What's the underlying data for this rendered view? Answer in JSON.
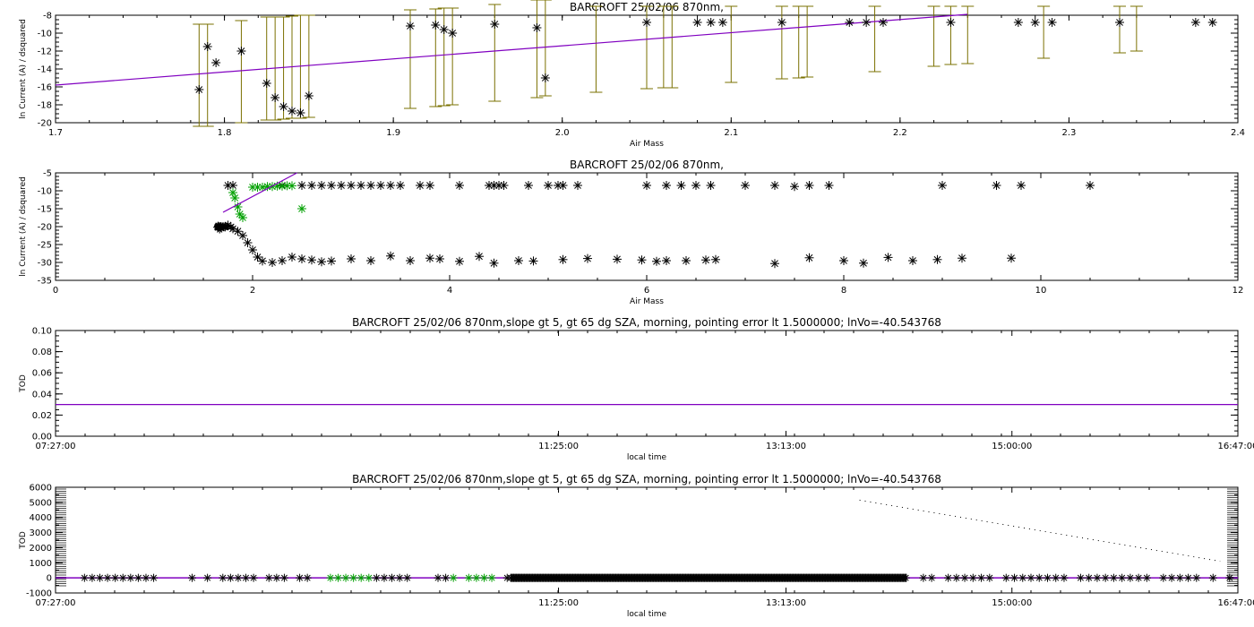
{
  "chart_data": [
    {
      "type": "scatter",
      "title": "BARCROFT 25/02/06 870nm,",
      "xlabel": "Air Mass",
      "ylabel": "ln Current (A) / dsquared",
      "xlim": [
        1.7,
        2.4
      ],
      "ylim": [
        -20,
        -8
      ],
      "xticks": [
        "1.7",
        "1.8",
        "1.9",
        "2.0",
        "2.1",
        "2.2",
        "2.3",
        "2.4"
      ],
      "yticks": [
        "-20",
        "-18",
        "-16",
        "-14",
        "-12",
        "-10",
        "-8"
      ],
      "colors": {
        "points": "#000000",
        "errorbars": "#7a7000",
        "fit": "#8000c0"
      },
      "points": [
        [
          1.785,
          -16.3
        ],
        [
          1.79,
          -11.5
        ],
        [
          1.795,
          -13.3
        ],
        [
          1.81,
          -12.0
        ],
        [
          1.825,
          -15.6
        ],
        [
          1.83,
          -17.2
        ],
        [
          1.835,
          -18.2
        ],
        [
          1.84,
          -18.7
        ],
        [
          1.845,
          -18.9
        ],
        [
          1.85,
          -17.0
        ],
        [
          1.91,
          -9.2
        ],
        [
          1.925,
          -9.1
        ],
        [
          1.93,
          -9.6
        ],
        [
          1.935,
          -10.0
        ],
        [
          1.96,
          -9.0
        ],
        [
          1.985,
          -9.4
        ],
        [
          1.99,
          -15.0
        ],
        [
          2.05,
          -8.8
        ],
        [
          2.08,
          -8.8
        ],
        [
          2.088,
          -8.8
        ],
        [
          2.095,
          -8.8
        ],
        [
          2.13,
          -8.8
        ],
        [
          2.17,
          -8.8
        ],
        [
          2.18,
          -8.8
        ],
        [
          2.19,
          -8.8
        ],
        [
          2.23,
          -8.8
        ],
        [
          2.27,
          -8.8
        ],
        [
          2.28,
          -8.8
        ],
        [
          2.29,
          -8.8
        ],
        [
          2.33,
          -8.8
        ],
        [
          2.375,
          -8.8
        ],
        [
          2.385,
          -8.8
        ]
      ],
      "errorbars": [
        [
          1.785,
          -20.4,
          -9.0
        ],
        [
          1.79,
          -20.4,
          -9.0
        ],
        [
          1.81,
          -20.0,
          -8.6
        ],
        [
          1.825,
          -19.7,
          -8.2
        ],
        [
          1.83,
          -19.7,
          -8.2
        ],
        [
          1.835,
          -19.6,
          -8.2
        ],
        [
          1.84,
          -19.5,
          -8.1
        ],
        [
          1.845,
          -19.5,
          -8.0
        ],
        [
          1.85,
          -19.4,
          -8.0
        ],
        [
          1.91,
          -18.4,
          -7.4
        ],
        [
          1.925,
          -18.2,
          -7.3
        ],
        [
          1.93,
          -18.1,
          -7.2
        ],
        [
          1.935,
          -18.0,
          -7.2
        ],
        [
          1.96,
          -17.6,
          -6.8
        ],
        [
          1.985,
          -17.2,
          -6.0
        ],
        [
          1.99,
          -17.0,
          -5.8
        ],
        [
          2.02,
          -16.6,
          -7.0
        ],
        [
          2.05,
          -16.2,
          -7.0
        ],
        [
          2.06,
          -16.1,
          -7.0
        ],
        [
          2.065,
          -16.1,
          -7.0
        ],
        [
          2.1,
          -15.5,
          -7.0
        ],
        [
          2.13,
          -15.1,
          -7.0
        ],
        [
          2.14,
          -15.0,
          -7.0
        ],
        [
          2.145,
          -14.9,
          -7.0
        ],
        [
          2.185,
          -14.3,
          -7.0
        ],
        [
          2.22,
          -13.7,
          -7.0
        ],
        [
          2.23,
          -13.5,
          -7.0
        ],
        [
          2.24,
          -13.4,
          -7.0
        ],
        [
          2.285,
          -12.8,
          -7.0
        ],
        [
          2.33,
          -12.2,
          -7.0
        ],
        [
          2.34,
          -12.0,
          -7.0
        ]
      ],
      "fit_line": [
        [
          1.7,
          -15.8
        ],
        [
          2.24,
          -7.9
        ]
      ]
    },
    {
      "type": "scatter",
      "title": "BARCROFT 25/02/06 870nm,",
      "xlabel": "Air Mass",
      "ylabel": "ln Current (A) / dsquared",
      "xlim": [
        0,
        12
      ],
      "ylim": [
        -35,
        -5
      ],
      "xticks": [
        "0",
        "2",
        "4",
        "6",
        "8",
        "10",
        "12"
      ],
      "yticks": [
        "-35",
        "-30",
        "-25",
        "-20",
        "-15",
        "-10",
        "-5"
      ],
      "colors": {
        "black": "#000000",
        "green": "#00a000",
        "fit": "#8000c0"
      },
      "black_points": [
        [
          1.65,
          -20.2
        ],
        [
          1.68,
          -20.2
        ],
        [
          1.7,
          -20.0
        ],
        [
          1.72,
          -20.1
        ],
        [
          1.75,
          -19.6
        ],
        [
          1.78,
          -20.1
        ],
        [
          1.8,
          -20.6
        ],
        [
          1.85,
          -21.3
        ],
        [
          1.9,
          -22.5
        ],
        [
          1.95,
          -24.5
        ],
        [
          2.0,
          -26.5
        ],
        [
          2.05,
          -28.5
        ],
        [
          2.1,
          -29.6
        ],
        [
          2.2,
          -30.0
        ],
        [
          2.3,
          -29.5
        ],
        [
          2.4,
          -28.5
        ],
        [
          2.5,
          -29.0
        ],
        [
          2.6,
          -29.3
        ],
        [
          2.7,
          -29.8
        ],
        [
          2.8,
          -29.6
        ],
        [
          3.0,
          -29.0
        ],
        [
          3.2,
          -29.5
        ],
        [
          3.4,
          -28.2
        ],
        [
          3.6,
          -29.5
        ],
        [
          3.8,
          -28.8
        ],
        [
          3.9,
          -29.0
        ],
        [
          4.1,
          -29.7
        ],
        [
          4.3,
          -28.3
        ],
        [
          4.45,
          -30.2
        ],
        [
          4.7,
          -29.5
        ],
        [
          4.85,
          -29.6
        ],
        [
          5.15,
          -29.2
        ],
        [
          5.4,
          -28.9
        ],
        [
          5.7,
          -29.1
        ],
        [
          5.95,
          -29.3
        ],
        [
          6.1,
          -29.7
        ],
        [
          6.2,
          -29.5
        ],
        [
          6.4,
          -29.5
        ],
        [
          6.6,
          -29.3
        ],
        [
          6.7,
          -29.2
        ],
        [
          7.3,
          -30.3
        ],
        [
          7.65,
          -28.7
        ],
        [
          8.0,
          -29.5
        ],
        [
          8.2,
          -30.2
        ],
        [
          8.45,
          -28.6
        ],
        [
          8.7,
          -29.5
        ],
        [
          8.95,
          -29.2
        ],
        [
          9.2,
          -28.8
        ],
        [
          9.7,
          -28.8
        ],
        [
          1.75,
          -8.5
        ],
        [
          1.8,
          -8.5
        ],
        [
          2.3,
          -8.5
        ],
        [
          2.5,
          -8.5
        ],
        [
          2.6,
          -8.5
        ],
        [
          2.7,
          -8.5
        ],
        [
          2.8,
          -8.5
        ],
        [
          2.9,
          -8.5
        ],
        [
          3.0,
          -8.5
        ],
        [
          3.1,
          -8.5
        ],
        [
          3.2,
          -8.5
        ],
        [
          3.3,
          -8.5
        ],
        [
          3.4,
          -8.5
        ],
        [
          3.5,
          -8.5
        ],
        [
          3.7,
          -8.5
        ],
        [
          3.8,
          -8.5
        ],
        [
          4.1,
          -8.5
        ],
        [
          4.4,
          -8.5
        ],
        [
          4.45,
          -8.5
        ],
        [
          4.5,
          -8.5
        ],
        [
          4.55,
          -8.5
        ],
        [
          4.8,
          -8.5
        ],
        [
          5.0,
          -8.5
        ],
        [
          5.1,
          -8.5
        ],
        [
          5.15,
          -8.5
        ],
        [
          5.3,
          -8.5
        ],
        [
          6.0,
          -8.5
        ],
        [
          6.2,
          -8.5
        ],
        [
          6.35,
          -8.5
        ],
        [
          6.5,
          -8.5
        ],
        [
          6.65,
          -8.5
        ],
        [
          7.0,
          -8.5
        ],
        [
          7.3,
          -8.5
        ],
        [
          7.5,
          -8.8
        ],
        [
          7.65,
          -8.5
        ],
        [
          7.85,
          -8.5
        ],
        [
          9.0,
          -8.5
        ],
        [
          9.55,
          -8.5
        ],
        [
          9.8,
          -8.5
        ],
        [
          10.5,
          -8.5
        ]
      ],
      "green_points": [
        [
          1.8,
          -10.5
        ],
        [
          1.82,
          -12.0
        ],
        [
          1.85,
          -14.5
        ],
        [
          1.87,
          -16.5
        ],
        [
          1.9,
          -17.5
        ],
        [
          2.0,
          -9.0
        ],
        [
          2.05,
          -9.0
        ],
        [
          2.1,
          -9.0
        ],
        [
          2.15,
          -8.8
        ],
        [
          2.2,
          -8.8
        ],
        [
          2.25,
          -8.7
        ],
        [
          2.3,
          -8.7
        ],
        [
          2.35,
          -8.6
        ],
        [
          2.4,
          -8.6
        ],
        [
          2.5,
          -15.0
        ]
      ],
      "fit_line": [
        [
          1.7,
          -16.0
        ],
        [
          2.45,
          -5.0
        ]
      ]
    },
    {
      "type": "line",
      "title": "BARCROFT 25/02/06 870nm,slope gt 5, gt 65 dg SZA, morning, pointing error lt 1.5000000; lnVo=-40.543768",
      "xlabel": "local time",
      "ylabel": "TOD",
      "xlim": [
        0,
        1
      ],
      "ylim": [
        0,
        0.1
      ],
      "xticks": [
        "07:27:00",
        "11:25:00",
        "13:13:00",
        "15:00:00",
        "16:47:00"
      ],
      "xtick_positions": [
        0,
        0.4254,
        0.6178,
        0.8089,
        1.0
      ],
      "yticks": [
        "0.00",
        "0.02",
        "0.04",
        "0.06",
        "0.08",
        "0.10"
      ],
      "colors": {
        "line": "#8000c0"
      },
      "line_value": 0.03
    },
    {
      "type": "scatter",
      "title": "BARCROFT 25/02/06 870nm,slope gt 5, gt 65 dg SZA, morning, pointing error lt 1.5000000; lnVo=-40.543768",
      "xlabel": "local time",
      "ylabel": "TOD",
      "xlim": [
        0,
        1
      ],
      "ylim": [
        -1000,
        6000
      ],
      "xticks": [
        "07:27:00",
        "11:25:00",
        "13:13:00",
        "15:00:00",
        "16:47:00"
      ],
      "xtick_positions": [
        0,
        0.4254,
        0.6178,
        0.8089,
        1.0
      ],
      "yticks": [
        "-1000",
        "0",
        "1000",
        "2000",
        "3000",
        "4000",
        "5000",
        "6000"
      ],
      "colors": {
        "black": "#000000",
        "green": "#00a000",
        "line": "#8000c0"
      },
      "zero_line": 0,
      "dotted_trend": [
        [
          0.68,
          5150
        ],
        [
          0.985,
          1100
        ]
      ],
      "dense_band": [
        0.385,
        0.72
      ]
    }
  ]
}
